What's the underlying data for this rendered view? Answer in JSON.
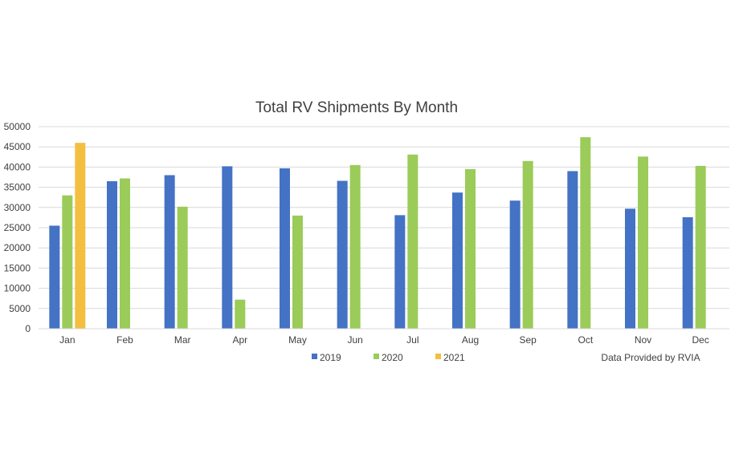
{
  "chart_data": {
    "type": "bar",
    "title": "Total RV Shipments By Month",
    "categories": [
      "Jan",
      "Feb",
      "Mar",
      "Apr",
      "May",
      "Jun",
      "Jul",
      "Aug",
      "Sep",
      "Oct",
      "Nov",
      "Dec"
    ],
    "series": [
      {
        "name": "2019",
        "color": "#4472c4",
        "values": [
          25500,
          36500,
          38000,
          40200,
          39700,
          36600,
          28100,
          33700,
          31700,
          39000,
          29700,
          27600
        ]
      },
      {
        "name": "2020",
        "color": "#9bcb59",
        "values": [
          33000,
          37200,
          30200,
          7200,
          28000,
          40500,
          43100,
          39500,
          41500,
          47400,
          42600,
          40300
        ]
      },
      {
        "name": "2021",
        "color": "#f4bf40",
        "values": [
          46000,
          null,
          null,
          null,
          null,
          null,
          null,
          null,
          null,
          null,
          null,
          null
        ]
      }
    ],
    "xlabel": "",
    "ylabel": "",
    "ylim": [
      0,
      50000
    ],
    "yticks": [
      "0",
      "5000",
      "10000",
      "15000",
      "20000",
      "25000",
      "30000",
      "35000",
      "40000",
      "45000",
      "50000"
    ],
    "grid": true,
    "legend": "bottom",
    "annotation": "Data Provided by RVIA"
  }
}
